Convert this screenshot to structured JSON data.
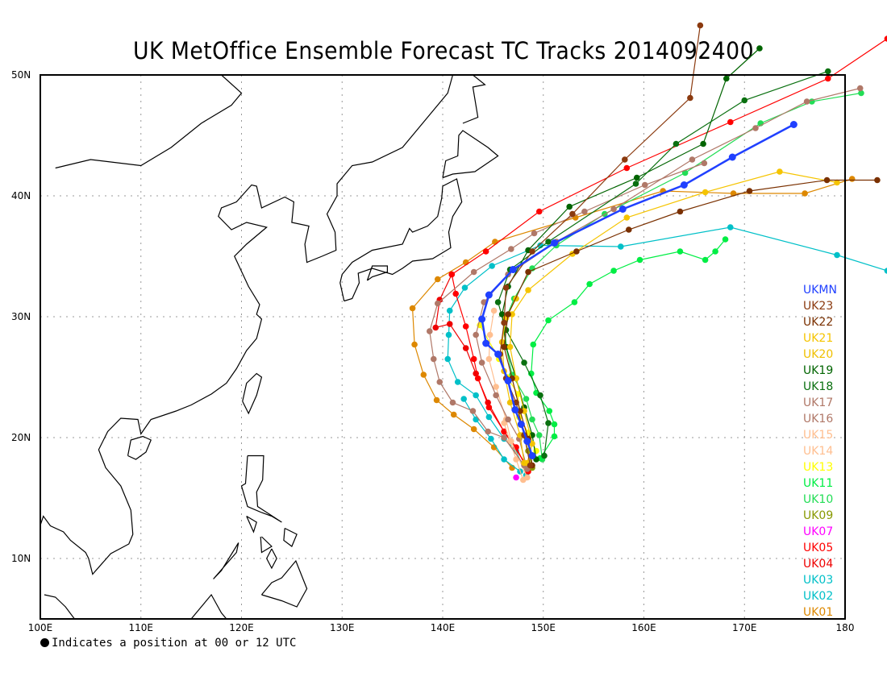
{
  "title": "UK MetOffice Ensemble Forecast TC Tracks 2014092400",
  "map": {
    "lon_range": [
      100,
      180
    ],
    "lat_range": [
      5,
      50
    ],
    "grid": true,
    "x_ticks": [
      "100E",
      "110E",
      "120E",
      "130E",
      "140E",
      "150E",
      "160E",
      "170E",
      "180"
    ],
    "y_ticks": [
      "10N",
      "20N",
      "30N",
      "40N",
      "50N"
    ]
  },
  "note": "Indicates a position at 00 or 12 UTC",
  "tracks": [
    {
      "name": "UKMN",
      "color": "#2040ff",
      "points": [
        [
          148.9,
          18.5
        ],
        [
          148.4,
          19.7
        ],
        [
          147.8,
          21.1
        ],
        [
          147.2,
          22.3
        ],
        [
          146.5,
          24.7
        ],
        [
          145.5,
          26.9
        ],
        [
          144.3,
          27.8
        ],
        [
          143.9,
          29.8
        ],
        [
          144.6,
          31.8
        ],
        [
          147.0,
          33.9
        ],
        [
          151.1,
          36.1
        ],
        [
          157.9,
          38.9
        ],
        [
          164.0,
          40.9
        ],
        [
          168.8,
          43.2
        ],
        [
          174.9,
          45.9
        ]
      ]
    },
    {
      "name": "UK23",
      "color": "#8b3a0f",
      "points": [
        [
          148.7,
          17.7
        ],
        [
          148.1,
          20.2
        ],
        [
          147.3,
          22.9
        ],
        [
          146.3,
          24.9
        ],
        [
          145.7,
          26.9
        ],
        [
          146.1,
          29.5
        ],
        [
          146.3,
          32.4
        ],
        [
          148.9,
          35.4
        ],
        [
          152.9,
          38.5
        ],
        [
          158.1,
          43.0
        ],
        [
          164.6,
          48.1
        ],
        [
          165.6,
          54.1
        ]
      ]
    },
    {
      "name": "UK22",
      "color": "#7a3000",
      "points": [
        [
          148.9,
          17.7
        ],
        [
          148.5,
          19.9
        ],
        [
          147.7,
          22.2
        ],
        [
          146.9,
          24.9
        ],
        [
          146.1,
          27.5
        ],
        [
          146.5,
          30.2
        ],
        [
          148.5,
          33.7
        ],
        [
          153.3,
          35.4
        ],
        [
          158.5,
          37.2
        ],
        [
          163.6,
          38.7
        ],
        [
          170.5,
          40.4
        ],
        [
          178.2,
          41.3
        ],
        [
          183.2,
          41.3
        ]
      ]
    },
    {
      "name": "UK21",
      "color": "#f5c400",
      "points": [
        [
          148.4,
          17.9
        ],
        [
          148.9,
          19.5
        ],
        [
          148.1,
          22.2
        ],
        [
          147.3,
          24.9
        ],
        [
          146.7,
          27.5
        ],
        [
          146.9,
          30.2
        ],
        [
          148.5,
          32.2
        ],
        [
          152.9,
          35.2
        ],
        [
          158.3,
          38.2
        ],
        [
          166.1,
          40.3
        ],
        [
          173.5,
          42.0
        ],
        [
          179.2,
          41.1
        ]
      ]
    },
    {
      "name": "UK20",
      "color": "#f0c000",
      "points": [
        [
          148.1,
          17.9
        ],
        [
          147.7,
          20.2
        ],
        [
          146.7,
          22.9
        ],
        [
          146.1,
          25.5
        ],
        [
          145.9,
          27.9
        ],
        [
          146.3,
          29.9
        ],
        [
          147.3,
          31.5
        ]
      ]
    },
    {
      "name": "UK19",
      "color": "#006400",
      "points": [
        [
          149.3,
          18.2
        ],
        [
          148.9,
          20.2
        ],
        [
          148.1,
          22.5
        ],
        [
          147.3,
          24.9
        ],
        [
          146.3,
          27.5
        ],
        [
          145.9,
          30.2
        ],
        [
          146.5,
          32.5
        ],
        [
          148.5,
          35.5
        ],
        [
          152.6,
          39.1
        ],
        [
          159.3,
          41.5
        ],
        [
          165.9,
          44.3
        ],
        [
          168.2,
          49.7
        ],
        [
          171.5,
          52.2
        ]
      ]
    },
    {
      "name": "UK18",
      "color": "#0a7010",
      "points": [
        [
          150.1,
          18.5
        ],
        [
          150.5,
          21.2
        ],
        [
          149.7,
          23.5
        ],
        [
          148.1,
          26.2
        ],
        [
          146.3,
          28.9
        ],
        [
          145.5,
          31.2
        ],
        [
          146.7,
          33.9
        ],
        [
          150.5,
          36.2
        ],
        [
          159.2,
          41.0
        ],
        [
          163.2,
          44.3
        ],
        [
          170.0,
          47.9
        ],
        [
          178.3,
          50.3
        ]
      ]
    },
    {
      "name": "UK17",
      "color": "#b07868",
      "points": [
        [
          148.4,
          17.4
        ],
        [
          147.6,
          19.9
        ],
        [
          146.5,
          21.5
        ],
        [
          145.3,
          23.5
        ],
        [
          143.9,
          26.2
        ],
        [
          143.3,
          28.5
        ],
        [
          144.1,
          31.2
        ],
        [
          146.5,
          33.5
        ],
        [
          151.3,
          36.2
        ],
        [
          157.0,
          38.9
        ],
        [
          164.8,
          43.0
        ],
        [
          171.1,
          45.6
        ],
        [
          176.2,
          47.8
        ],
        [
          181.5,
          48.9
        ]
      ]
    },
    {
      "name": "UK16",
      "color": "#b07868",
      "points": [
        [
          148.1,
          17.7
        ],
        [
          146.1,
          20.0
        ],
        [
          144.5,
          20.5
        ],
        [
          143.0,
          22.2
        ],
        [
          141.0,
          22.9
        ],
        [
          139.7,
          24.6
        ],
        [
          139.1,
          26.5
        ],
        [
          138.7,
          28.8
        ],
        [
          139.5,
          31.1
        ],
        [
          143.1,
          33.7
        ],
        [
          146.8,
          35.6
        ],
        [
          149.1,
          36.9
        ],
        [
          154.1,
          38.7
        ],
        [
          160.1,
          40.9
        ],
        [
          166.0,
          42.7
        ]
      ]
    },
    {
      "name": "UK15",
      "color": "#ffbf90",
      "points": [
        [
          148.0,
          16.5
        ],
        [
          147.3,
          18.2
        ],
        [
          146.7,
          19.7
        ],
        [
          146.1,
          21.2
        ]
      ]
    },
    {
      "name": "UK14",
      "color": "#ffbf90",
      "points": [
        [
          148.4,
          16.7
        ],
        [
          146.8,
          19.7
        ],
        [
          146.3,
          21.5
        ],
        [
          145.3,
          24.2
        ],
        [
          144.6,
          26.5
        ],
        [
          144.7,
          28.5
        ],
        [
          145.1,
          30.5
        ]
      ]
    },
    {
      "name": "UK13",
      "color": "#ffff00",
      "points": [
        [
          149.3,
          18.9
        ],
        [
          148.5,
          20.4
        ],
        [
          147.6,
          21.7
        ],
        [
          147.5,
          23.6
        ],
        [
          146.4,
          25.0
        ],
        [
          145.6,
          26.5
        ],
        [
          143.7,
          29.3
        ]
      ]
    },
    {
      "name": "UK11",
      "color": "#00ee44",
      "points": [
        [
          149.7,
          18.3
        ],
        [
          151.1,
          20.1
        ],
        [
          151.1,
          21.1
        ],
        [
          150.6,
          22.2
        ],
        [
          149.3,
          23.7
        ],
        [
          148.8,
          25.3
        ],
        [
          149.0,
          27.7
        ],
        [
          150.5,
          29.7
        ],
        [
          153.1,
          31.2
        ],
        [
          154.6,
          32.7
        ],
        [
          157.0,
          33.8
        ],
        [
          159.6,
          34.7
        ],
        [
          163.6,
          35.4
        ],
        [
          166.1,
          34.7
        ],
        [
          167.1,
          35.4
        ],
        [
          168.1,
          36.4
        ]
      ]
    },
    {
      "name": "UK10",
      "color": "#22dd55",
      "points": [
        [
          149.9,
          18.2
        ],
        [
          149.6,
          20.2
        ],
        [
          148.9,
          21.5
        ],
        [
          148.3,
          23.2
        ],
        [
          146.9,
          25.2
        ],
        [
          146.3,
          27.5
        ],
        [
          146.2,
          29.7
        ],
        [
          147.1,
          31.5
        ],
        [
          148.9,
          34.0
        ],
        [
          151.3,
          35.9
        ],
        [
          156.1,
          38.5
        ],
        [
          164.1,
          41.9
        ],
        [
          171.6,
          46.0
        ],
        [
          176.7,
          47.8
        ],
        [
          181.6,
          48.5
        ]
      ]
    },
    {
      "name": "UK09",
      "color": "#889900",
      "points": [
        [
          148.9,
          17.5
        ],
        [
          148.5,
          18.9
        ],
        [
          148.0,
          20.2
        ]
      ]
    },
    {
      "name": "UK07",
      "color": "#ff00ff",
      "points": [
        [
          147.3,
          16.7
        ]
      ]
    },
    {
      "name": "UK05",
      "color": "#ff0000",
      "points": [
        [
          148.5,
          17.2
        ],
        [
          147.3,
          19.2
        ],
        [
          146.1,
          20.5
        ],
        [
          144.6,
          22.5
        ],
        [
          143.5,
          24.9
        ],
        [
          143.1,
          26.5
        ],
        [
          142.3,
          29.2
        ],
        [
          141.3,
          31.9
        ],
        [
          140.9,
          33.5
        ],
        [
          144.3,
          35.4
        ],
        [
          149.6,
          38.7
        ],
        [
          158.3,
          42.3
        ],
        [
          168.6,
          46.1
        ],
        [
          178.3,
          49.7
        ],
        [
          184.2,
          53.0
        ]
      ]
    },
    {
      "name": "UK04",
      "color": "#ee0000",
      "points": [
        [
          148.5,
          17.5
        ],
        [
          146.1,
          20.5
        ],
        [
          144.5,
          22.9
        ],
        [
          143.3,
          25.3
        ],
        [
          142.3,
          27.4
        ],
        [
          140.7,
          29.4
        ],
        [
          139.3,
          29.1
        ],
        [
          139.7,
          31.4
        ],
        [
          140.9,
          33.5
        ]
      ]
    },
    {
      "name": "UK03",
      "color": "#00c0c8",
      "points": [
        [
          148.3,
          16.9
        ],
        [
          147.3,
          18.9
        ],
        [
          146.1,
          19.9
        ],
        [
          144.6,
          21.7
        ],
        [
          143.3,
          23.5
        ],
        [
          141.5,
          24.6
        ],
        [
          140.5,
          26.5
        ],
        [
          140.6,
          28.5
        ],
        [
          140.7,
          30.5
        ],
        [
          142.2,
          32.4
        ],
        [
          144.9,
          34.2
        ],
        [
          149.7,
          35.9
        ],
        [
          157.7,
          35.8
        ],
        [
          168.6,
          37.4
        ],
        [
          179.2,
          35.1
        ],
        [
          184.2,
          33.8
        ]
      ]
    },
    {
      "name": "UK02",
      "color": "#00c0c8",
      "points": [
        [
          147.7,
          17.2
        ],
        [
          146.1,
          18.2
        ],
        [
          144.8,
          19.9
        ],
        [
          143.3,
          21.5
        ],
        [
          142.1,
          23.2
        ]
      ]
    },
    {
      "name": "UK01",
      "color": "#dd8800",
      "points": [
        [
          146.9,
          17.5
        ],
        [
          145.1,
          19.2
        ],
        [
          143.1,
          20.7
        ],
        [
          141.1,
          21.9
        ],
        [
          139.4,
          23.1
        ],
        [
          138.1,
          25.2
        ],
        [
          137.2,
          27.7
        ],
        [
          137.0,
          30.7
        ],
        [
          139.5,
          33.1
        ],
        [
          142.3,
          34.5
        ],
        [
          145.2,
          36.2
        ],
        [
          153.2,
          38.2
        ],
        [
          161.9,
          40.4
        ],
        [
          168.9,
          40.2
        ],
        [
          176.0,
          40.2
        ],
        [
          180.7,
          41.4
        ]
      ]
    }
  ]
}
